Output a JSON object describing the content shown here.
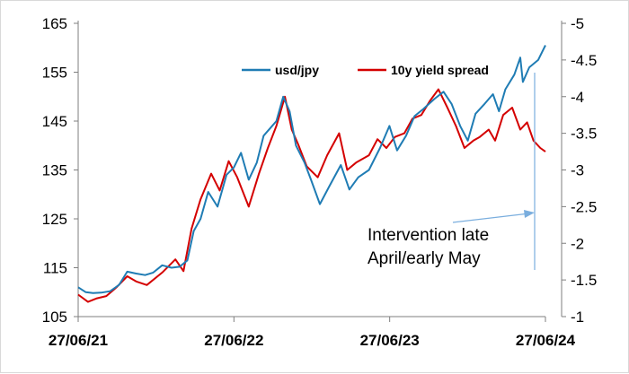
{
  "chart_data": {
    "type": "line",
    "x_ticks": [
      "27/06/21",
      "27/06/22",
      "27/06/23",
      "27/06/24"
    ],
    "xlim": [
      "2021-06-27",
      "2024-06-27"
    ],
    "y_left": {
      "lim": [
        105,
        165
      ],
      "ticks": [
        "105",
        "115",
        "125",
        "135",
        "145",
        "155",
        "165"
      ]
    },
    "y_right": {
      "lim": [
        -1,
        -5
      ],
      "inverted": true,
      "ticks": [
        "-1",
        "-1.5",
        "-2",
        "-2.5",
        "-3",
        "-3.5",
        "-4",
        "-4.5",
        "-5"
      ]
    },
    "legend_placement": "top-right",
    "grid": false,
    "series": [
      {
        "name": "usd/jpy",
        "axis": "left",
        "color": "#1f7cb4",
        "points": [
          [
            "2021-06-27",
            111
          ],
          [
            "2021-07-15",
            110
          ],
          [
            "2021-08-01",
            109.8
          ],
          [
            "2021-08-20",
            109.9
          ],
          [
            "2021-09-10",
            110.2
          ],
          [
            "2021-10-01",
            111.5
          ],
          [
            "2021-10-20",
            114.2
          ],
          [
            "2021-11-10",
            113.8
          ],
          [
            "2021-12-01",
            113.5
          ],
          [
            "2021-12-20",
            114
          ],
          [
            "2022-01-10",
            115.5
          ],
          [
            "2022-02-01",
            115
          ],
          [
            "2022-02-20",
            115.2
          ],
          [
            "2022-03-10",
            116.5
          ],
          [
            "2022-03-25",
            122.5
          ],
          [
            "2022-04-10",
            125
          ],
          [
            "2022-04-28",
            130.5
          ],
          [
            "2022-05-20",
            127.5
          ],
          [
            "2022-06-10",
            134
          ],
          [
            "2022-06-27",
            135.5
          ],
          [
            "2022-07-14",
            138.5
          ],
          [
            "2022-08-01",
            133
          ],
          [
            "2022-08-20",
            136.5
          ],
          [
            "2022-09-05",
            142
          ],
          [
            "2022-09-20",
            143.5
          ],
          [
            "2022-10-05",
            145
          ],
          [
            "2022-10-21",
            150
          ],
          [
            "2022-11-05",
            147
          ],
          [
            "2022-11-20",
            140
          ],
          [
            "2022-12-10",
            136.5
          ],
          [
            "2022-12-25",
            133
          ],
          [
            "2023-01-15",
            128
          ],
          [
            "2023-02-05",
            131.5
          ],
          [
            "2023-03-05",
            136
          ],
          [
            "2023-03-25",
            131
          ],
          [
            "2023-04-15",
            133.5
          ],
          [
            "2023-05-10",
            135
          ],
          [
            "2023-06-05",
            139.5
          ],
          [
            "2023-06-27",
            144
          ],
          [
            "2023-07-15",
            139
          ],
          [
            "2023-08-05",
            142
          ],
          [
            "2023-08-25",
            146
          ],
          [
            "2023-09-15",
            147.5
          ],
          [
            "2023-10-10",
            149.5
          ],
          [
            "2023-11-01",
            151
          ],
          [
            "2023-11-20",
            148.5
          ],
          [
            "2023-12-10",
            144
          ],
          [
            "2023-12-28",
            141
          ],
          [
            "2024-01-15",
            146.5
          ],
          [
            "2024-02-05",
            148.5
          ],
          [
            "2024-02-25",
            150.5
          ],
          [
            "2024-03-10",
            147
          ],
          [
            "2024-03-25",
            151.5
          ],
          [
            "2024-04-15",
            154.5
          ],
          [
            "2024-04-29",
            158
          ],
          [
            "2024-05-05",
            153
          ],
          [
            "2024-05-20",
            156
          ],
          [
            "2024-06-10",
            157.5
          ],
          [
            "2024-06-27",
            160.5
          ]
        ]
      },
      {
        "name": "10y yield spread",
        "axis": "right",
        "color": "#d40000",
        "points": [
          [
            "2021-06-27",
            -1.3
          ],
          [
            "2021-07-20",
            -1.2
          ],
          [
            "2021-08-10",
            -1.25
          ],
          [
            "2021-09-01",
            -1.28
          ],
          [
            "2021-09-25",
            -1.4
          ],
          [
            "2021-10-20",
            -1.55
          ],
          [
            "2021-11-10",
            -1.48
          ],
          [
            "2021-12-05",
            -1.43
          ],
          [
            "2022-01-10",
            -1.6
          ],
          [
            "2022-02-10",
            -1.78
          ],
          [
            "2022-03-01",
            -1.62
          ],
          [
            "2022-03-20",
            -2.2
          ],
          [
            "2022-04-10",
            -2.6
          ],
          [
            "2022-05-05",
            -2.95
          ],
          [
            "2022-05-25",
            -2.72
          ],
          [
            "2022-06-15",
            -3.12
          ],
          [
            "2022-07-05",
            -2.9
          ],
          [
            "2022-08-01",
            -2.5
          ],
          [
            "2022-08-25",
            -2.95
          ],
          [
            "2022-09-15",
            -3.3
          ],
          [
            "2022-10-05",
            -3.6
          ],
          [
            "2022-10-25",
            -4.0
          ],
          [
            "2022-11-10",
            -3.55
          ],
          [
            "2022-11-25",
            -3.35
          ],
          [
            "2022-12-15",
            -3.05
          ],
          [
            "2023-01-10",
            -2.9
          ],
          [
            "2023-02-01",
            -3.2
          ],
          [
            "2023-03-01",
            -3.5
          ],
          [
            "2023-03-20",
            -3.0
          ],
          [
            "2023-04-10",
            -3.1
          ],
          [
            "2023-05-10",
            -3.2
          ],
          [
            "2023-05-30",
            -3.42
          ],
          [
            "2023-06-20",
            -3.3
          ],
          [
            "2023-07-10",
            -3.45
          ],
          [
            "2023-08-01",
            -3.5
          ],
          [
            "2023-08-20",
            -3.7
          ],
          [
            "2023-09-10",
            -3.75
          ],
          [
            "2023-10-01",
            -3.95
          ],
          [
            "2023-10-20",
            -4.1
          ],
          [
            "2023-11-10",
            -3.85
          ],
          [
            "2023-11-30",
            -3.6
          ],
          [
            "2023-12-20",
            -3.3
          ],
          [
            "2024-01-10",
            -3.4
          ],
          [
            "2024-01-25",
            -3.45
          ],
          [
            "2024-02-15",
            -3.55
          ],
          [
            "2024-03-01",
            -3.4
          ],
          [
            "2024-03-20",
            -3.75
          ],
          [
            "2024-04-10",
            -3.85
          ],
          [
            "2024-04-29",
            -3.55
          ],
          [
            "2024-05-15",
            -3.65
          ],
          [
            "2024-05-30",
            -3.4
          ],
          [
            "2024-06-15",
            -3.3
          ],
          [
            "2024-06-27",
            -3.25
          ]
        ]
      }
    ],
    "annotation": {
      "lines": [
        "Intervention late",
        "April/early May"
      ],
      "arrow_color": "#7aaede"
    }
  }
}
